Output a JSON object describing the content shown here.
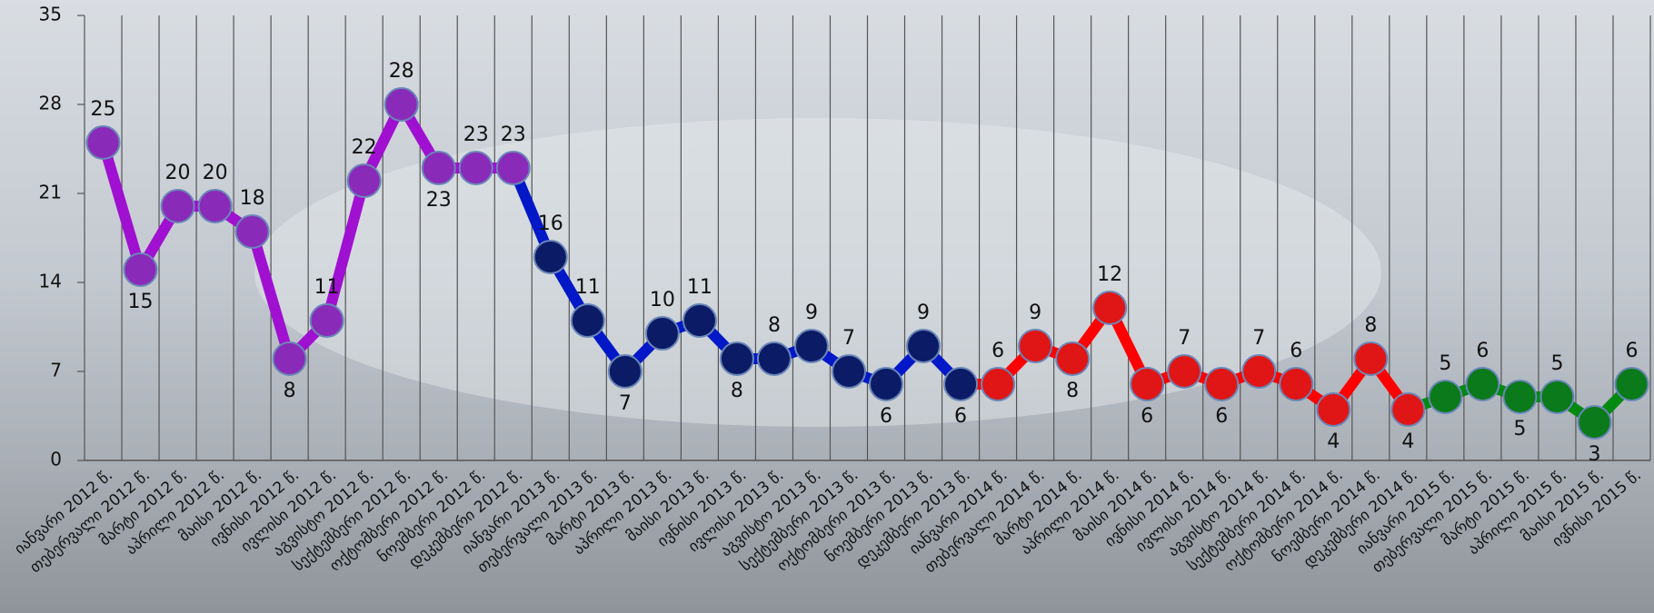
{
  "chart_data": {
    "type": "line",
    "categories": [
      "იანვარი 2012 წ.",
      "თებერვალი 2012 წ.",
      "მარტი 2012 წ.",
      "აპრილი 2012 წ.",
      "მაისი 2012 წ.",
      "ივნისი 2012 წ.",
      "ივლისი 2012 წ.",
      "აგვისტო 2012 წ.",
      "სექტემბერი 2012 წ.",
      "ოქტომბერი 2012 წ.",
      "ნოემბერი 2012 წ.",
      "დეკემბერი 2012 წ.",
      "იანვარი 2013 წ.",
      "თებერვალი 2013 წ.",
      "მარტი 2013 წ.",
      "აპრილი 2013 წ.",
      "მაისი 2013 წ.",
      "ივნისი 2013 წ.",
      "ივლისი 2013 წ.",
      "აგვისტო 2013 წ.",
      "სექტემბერი 2013 წ.",
      "ოქტომბერი 2013 წ.",
      "ნოემბერი 2013 წ.",
      "დეკემბერი 2013 წ.",
      "იანვარი 2014 წ.",
      "თებერვალი 2014 წ.",
      "მარტი 2014 წ.",
      "აპრილი 2014 წ.",
      "მაისი 2014 წ.",
      "ივნისი 2014 წ.",
      "ივლისი 2014 წ.",
      "აგვისტო 2014 წ.",
      "სექტემბერი 2014 წ.",
      "ოქტომბერი 2014 წ.",
      "ნოემბერი 2014 წ.",
      "დეკემბერი 2014 წ.",
      "იანვარი 2015 წ.",
      "თებერვალი 2015 წ.",
      "მარტი 2015 წ.",
      "აპრილი 2015 წ.",
      "მაისი 2015 წ.",
      "ივნისი 2015 წ."
    ],
    "series": [
      {
        "color": "#a010d0",
        "marker": "#8a2ab8",
        "values": [
          25,
          15,
          20,
          20,
          18,
          8,
          11,
          22,
          28,
          23,
          23,
          23,
          null,
          null,
          null,
          null,
          null,
          null,
          null,
          null,
          null,
          null,
          null,
          null,
          null,
          null,
          null,
          null,
          null,
          null,
          null,
          null,
          null,
          null,
          null,
          null,
          null,
          null,
          null,
          null,
          null,
          null
        ]
      },
      {
        "color": "#0018c8",
        "marker": "#0b1b66",
        "values": [
          null,
          null,
          null,
          null,
          null,
          null,
          null,
          null,
          null,
          null,
          null,
          null,
          16,
          11,
          7,
          10,
          11,
          8,
          8,
          9,
          7,
          6,
          9,
          6,
          null,
          null,
          null,
          null,
          null,
          null,
          null,
          null,
          null,
          null,
          null,
          null,
          null,
          null,
          null,
          null,
          null,
          null
        ]
      },
      {
        "color": "#ff0000",
        "marker": "#e01515",
        "values": [
          null,
          null,
          null,
          null,
          null,
          null,
          null,
          null,
          null,
          null,
          null,
          null,
          null,
          null,
          null,
          null,
          null,
          null,
          null,
          null,
          null,
          null,
          null,
          null,
          6,
          9,
          8,
          12,
          6,
          7,
          6,
          7,
          6,
          4,
          8,
          4,
          null,
          null,
          null,
          null,
          null,
          null
        ]
      },
      {
        "color": "#008a10",
        "marker": "#0a7a1a",
        "values": [
          null,
          null,
          null,
          null,
          null,
          null,
          null,
          null,
          null,
          null,
          null,
          null,
          null,
          null,
          null,
          null,
          null,
          null,
          null,
          null,
          null,
          null,
          null,
          null,
          null,
          null,
          null,
          null,
          null,
          null,
          null,
          null,
          null,
          null,
          null,
          null,
          5,
          6,
          5,
          5,
          3,
          6
        ]
      }
    ],
    "ylim": [
      0,
      35
    ],
    "yticks": [
      0,
      7,
      14,
      21,
      28,
      35
    ],
    "grid": true
  }
}
